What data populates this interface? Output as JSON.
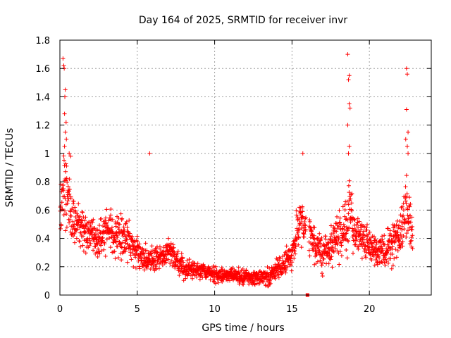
{
  "chart_data": {
    "type": "scatter",
    "title": "Day 164 of 2025, SRMTID for receiver invr",
    "xlabel": "GPS time / hours",
    "ylabel": "SRMTID / TECUs",
    "xlim": [
      0,
      24
    ],
    "ylim": [
      0,
      1.8
    ],
    "x_ticks": [
      0,
      5,
      10,
      15,
      20
    ],
    "x_tick_labels": [
      "0",
      "5",
      "10",
      "15",
      "20"
    ],
    "y_ticks": [
      0,
      0.2,
      0.4,
      0.6,
      0.8,
      1,
      1.2,
      1.4,
      1.6,
      1.8
    ],
    "y_tick_labels": [
      "0",
      "0.2",
      "0.4",
      "0.6",
      "0.8",
      "1",
      "1.2",
      "1.4",
      "1.6",
      "1.8"
    ],
    "grid": true,
    "marker": "+",
    "series": [
      {
        "name": "SRMTID",
        "color": "#ff0000",
        "trend_description": "Approximate envelope read from the plot; points scatter around this level",
        "x": [
          0.0,
          0.25,
          0.5,
          0.75,
          1.0,
          1.5,
          2.0,
          2.5,
          3.0,
          3.5,
          4.0,
          4.5,
          5.0,
          5.5,
          6.0,
          6.5,
          7.0,
          7.5,
          8.0,
          8.5,
          9.0,
          9.5,
          10.0,
          10.5,
          11.0,
          11.5,
          12.0,
          12.5,
          13.0,
          13.5,
          14.0,
          14.5,
          15.0,
          15.5,
          16.0,
          16.5,
          17.0,
          17.5,
          18.0,
          18.5,
          18.7,
          19.0,
          19.5,
          20.0,
          20.5,
          21.0,
          21.5,
          22.0,
          22.3,
          22.5,
          22.8
        ],
        "y": [
          0.55,
          0.8,
          0.65,
          0.6,
          0.5,
          0.45,
          0.42,
          0.4,
          0.45,
          0.42,
          0.4,
          0.38,
          0.3,
          0.25,
          0.25,
          0.28,
          0.3,
          0.25,
          0.2,
          0.18,
          0.17,
          0.16,
          0.15,
          0.14,
          0.15,
          0.13,
          0.13,
          0.12,
          0.12,
          0.13,
          0.18,
          0.22,
          0.3,
          0.55,
          0.45,
          0.35,
          0.3,
          0.35,
          0.4,
          0.5,
          0.6,
          0.45,
          0.4,
          0.35,
          0.3,
          0.32,
          0.35,
          0.45,
          0.6,
          0.55,
          0.45
        ],
        "spread": [
          0.18,
          0.3,
          0.2,
          0.18,
          0.15,
          0.15,
          0.14,
          0.14,
          0.16,
          0.14,
          0.13,
          0.12,
          0.1,
          0.09,
          0.09,
          0.1,
          0.1,
          0.09,
          0.07,
          0.06,
          0.06,
          0.05,
          0.05,
          0.05,
          0.05,
          0.05,
          0.05,
          0.05,
          0.05,
          0.05,
          0.07,
          0.08,
          0.1,
          0.18,
          0.14,
          0.12,
          0.11,
          0.12,
          0.14,
          0.2,
          0.3,
          0.15,
          0.14,
          0.12,
          0.1,
          0.12,
          0.12,
          0.15,
          0.25,
          0.2,
          0.15
        ],
        "outliers": [
          {
            "x": 0.2,
            "y": 1.67
          },
          {
            "x": 0.25,
            "y": 1.62
          },
          {
            "x": 0.28,
            "y": 1.6
          },
          {
            "x": 0.35,
            "y": 1.45
          },
          {
            "x": 0.32,
            "y": 1.4
          },
          {
            "x": 0.3,
            "y": 1.28
          },
          {
            "x": 0.4,
            "y": 1.22
          },
          {
            "x": 0.35,
            "y": 1.15
          },
          {
            "x": 0.42,
            "y": 1.1
          },
          {
            "x": 0.3,
            "y": 1.05
          },
          {
            "x": 0.6,
            "y": 1.0
          },
          {
            "x": 0.7,
            "y": 0.98
          },
          {
            "x": 5.8,
            "y": 1.0
          },
          {
            "x": 15.7,
            "y": 1.0
          },
          {
            "x": 18.6,
            "y": 1.7
          },
          {
            "x": 18.7,
            "y": 1.55
          },
          {
            "x": 18.65,
            "y": 1.52
          },
          {
            "x": 18.7,
            "y": 1.35
          },
          {
            "x": 18.75,
            "y": 1.32
          },
          {
            "x": 18.6,
            "y": 1.2
          },
          {
            "x": 18.7,
            "y": 1.05
          },
          {
            "x": 18.65,
            "y": 1.0
          },
          {
            "x": 22.4,
            "y": 1.6
          },
          {
            "x": 22.45,
            "y": 1.56
          },
          {
            "x": 22.4,
            "y": 1.31
          },
          {
            "x": 22.5,
            "y": 1.15
          },
          {
            "x": 22.35,
            "y": 1.1
          },
          {
            "x": 22.45,
            "y": 1.05
          },
          {
            "x": 22.5,
            "y": 1.0
          }
        ]
      }
    ],
    "special_marker": {
      "x": 16.0,
      "y": 0.0,
      "shape": "square",
      "color": "#ff0000"
    }
  }
}
